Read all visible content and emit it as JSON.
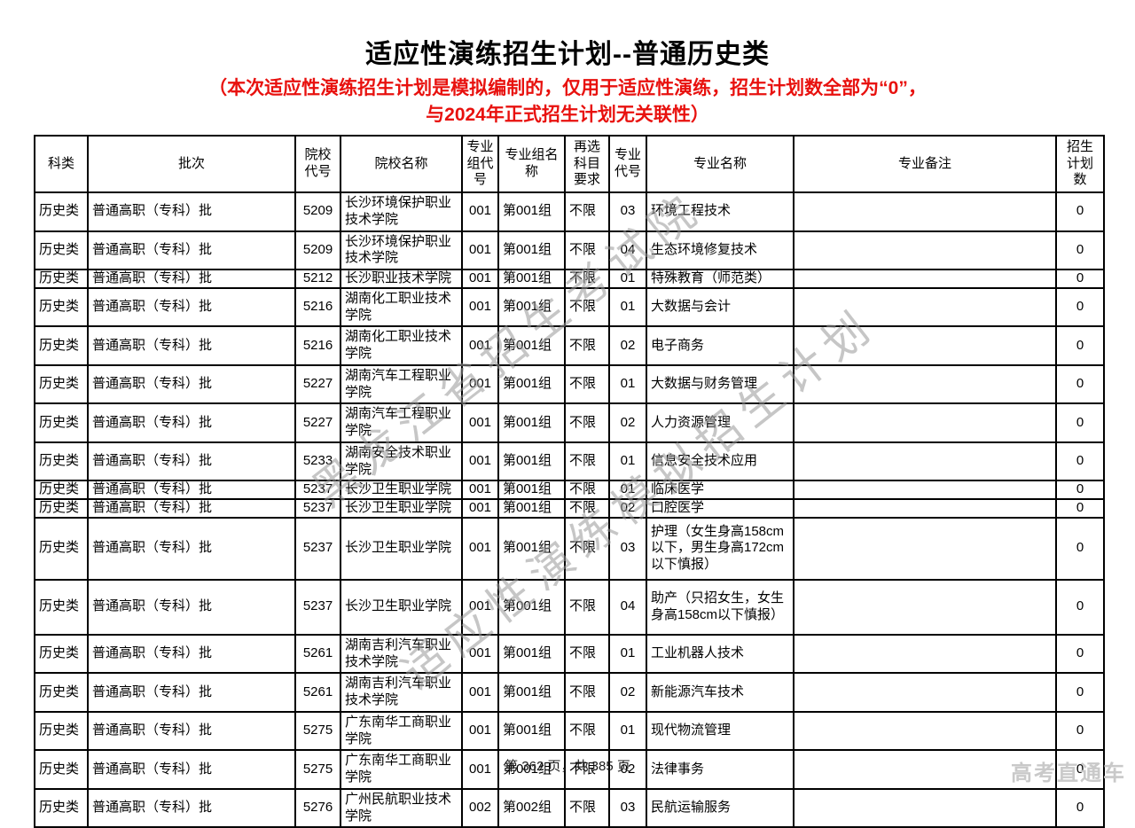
{
  "title": "适应性演练招生计划--普通历史类",
  "subtitle": {
    "line1": "（本次适应性演练招生计划是模拟编制的，仅用于适应性演练，招生计划数全部为“0”，",
    "line2": "与2024年正式招生计划无关联性）"
  },
  "colors": {
    "subtitle_red": "#e8110e",
    "watermark_gray": "#999999",
    "brand_gray": "#c9c9c9"
  },
  "watermarks": {
    "wm1": "黑龙江省招生考试院",
    "wm2": "适应性演练模拟招生计划"
  },
  "table": {
    "headers": [
      "科类",
      "批次",
      "院校代号",
      "院校名称",
      "专业组代号",
      "专业组名称",
      "再选科目要求",
      "专业代号",
      "专业名称",
      "专业备注",
      "招生计划数"
    ],
    "rows": [
      [
        "历史类",
        "普通高职（专科）批",
        "5209",
        "长沙环境保护职业技术学院",
        "001",
        "第001组",
        "不限",
        "03",
        "环境工程技术",
        "",
        "0"
      ],
      [
        "历史类",
        "普通高职（专科）批",
        "5209",
        "长沙环境保护职业技术学院",
        "001",
        "第001组",
        "不限",
        "04",
        "生态环境修复技术",
        "",
        "0"
      ],
      [
        "历史类",
        "普通高职（专科）批",
        "5212",
        "长沙职业技术学院",
        "001",
        "第001组",
        "不限",
        "01",
        "特殊教育（师范类）",
        "",
        "0"
      ],
      [
        "历史类",
        "普通高职（专科）批",
        "5216",
        "湖南化工职业技术学院",
        "001",
        "第001组",
        "不限",
        "01",
        "大数据与会计",
        "",
        "0"
      ],
      [
        "历史类",
        "普通高职（专科）批",
        "5216",
        "湖南化工职业技术学院",
        "001",
        "第001组",
        "不限",
        "02",
        "电子商务",
        "",
        "0"
      ],
      [
        "历史类",
        "普通高职（专科）批",
        "5227",
        "湖南汽车工程职业学院",
        "001",
        "第001组",
        "不限",
        "01",
        "大数据与财务管理",
        "",
        "0"
      ],
      [
        "历史类",
        "普通高职（专科）批",
        "5227",
        "湖南汽车工程职业学院",
        "001",
        "第001组",
        "不限",
        "02",
        "人力资源管理",
        "",
        "0"
      ],
      [
        "历史类",
        "普通高职（专科）批",
        "5233",
        "湖南安全技术职业学院",
        "001",
        "第001组",
        "不限",
        "01",
        "信息安全技术应用",
        "",
        "0"
      ],
      [
        "历史类",
        "普通高职（专科）批",
        "5237",
        "长沙卫生职业学院",
        "001",
        "第001组",
        "不限",
        "01",
        "临床医学",
        "",
        "0"
      ],
      [
        "历史类",
        "普通高职（专科）批",
        "5237",
        "长沙卫生职业学院",
        "001",
        "第001组",
        "不限",
        "02",
        "口腔医学",
        "",
        "0"
      ],
      [
        "历史类",
        "普通高职（专科）批",
        "5237",
        "长沙卫生职业学院",
        "001",
        "第001组",
        "不限",
        "03",
        "护理（女生身高158cm以下，男生身高172cm以下慎报）",
        "",
        "0"
      ],
      [
        "历史类",
        "普通高职（专科）批",
        "5237",
        "长沙卫生职业学院",
        "001",
        "第001组",
        "不限",
        "04",
        "助产（只招女生，女生身高158cm以下慎报）",
        "",
        "0"
      ],
      [
        "历史类",
        "普通高职（专科）批",
        "5261",
        "湖南吉利汽车职业技术学院",
        "001",
        "第001组",
        "不限",
        "01",
        "工业机器人技术",
        "",
        "0"
      ],
      [
        "历史类",
        "普通高职（专科）批",
        "5261",
        "湖南吉利汽车职业技术学院",
        "001",
        "第001组",
        "不限",
        "02",
        "新能源汽车技术",
        "",
        "0"
      ],
      [
        "历史类",
        "普通高职（专科）批",
        "5275",
        "广东南华工商职业学院",
        "001",
        "第001组",
        "不限",
        "01",
        "现代物流管理",
        "",
        "0"
      ],
      [
        "历史类",
        "普通高职（专科）批",
        "5275",
        "广东南华工商职业学院",
        "001",
        "第001组",
        "不限",
        "02",
        "法律事务",
        "",
        "0"
      ],
      [
        "历史类",
        "普通高职（专科）批",
        "5276",
        "广州民航职业技术学院",
        "002",
        "第002组",
        "不限",
        "03",
        "民航运输服务",
        "",
        "0"
      ]
    ]
  },
  "footer": {
    "page_info": "第 362 页，共 385 页",
    "brand": "高考直通车"
  }
}
